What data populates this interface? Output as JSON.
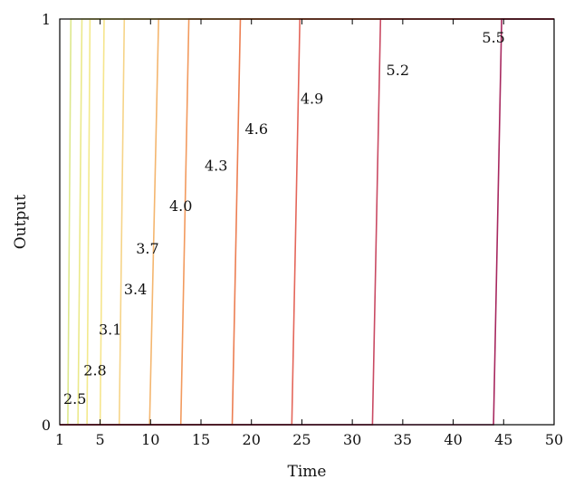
{
  "chart_data": {
    "type": "line",
    "title": "",
    "xlabel": "Time",
    "ylabel": "Output",
    "xlim": [
      1,
      50
    ],
    "ylim": [
      0,
      1
    ],
    "x_ticks": [
      "1",
      "5",
      "10",
      "15",
      "20",
      "25",
      "30",
      "35",
      "40",
      "45",
      "50"
    ],
    "y_ticks": [
      "0",
      "1"
    ],
    "grid": false,
    "series": [
      {
        "name": "2.5",
        "color": "#dde88c",
        "x": [
          1,
          1.8,
          2.1,
          50
        ],
        "y": [
          0,
          0,
          1,
          1
        ]
      },
      {
        "name": "2.8",
        "color": "#ebe98a",
        "x": [
          1,
          2.8,
          3.2,
          50
        ],
        "y": [
          0,
          0,
          1,
          1
        ]
      },
      {
        "name": "3.1",
        "color": "#f3e98c",
        "x": [
          1,
          3.7,
          4.0,
          50
        ],
        "y": [
          0,
          0,
          1,
          1
        ]
      },
      {
        "name": "3.4",
        "color": "#f6e58c",
        "x": [
          1,
          5.0,
          5.4,
          50
        ],
        "y": [
          0,
          0,
          1,
          1
        ]
      },
      {
        "name": "3.7",
        "color": "#f6d488",
        "x": [
          1,
          6.9,
          7.4,
          50
        ],
        "y": [
          0,
          0,
          1,
          1
        ]
      },
      {
        "name": "4.0",
        "color": "#f4b66f",
        "x": [
          1,
          9.9,
          10.8,
          50
        ],
        "y": [
          0,
          0,
          1,
          1
        ]
      },
      {
        "name": "4.3",
        "color": "#f29a5e",
        "x": [
          1,
          13.0,
          13.8,
          50
        ],
        "y": [
          0,
          0,
          1,
          1
        ]
      },
      {
        "name": "4.6",
        "color": "#ec7e52",
        "x": [
          1,
          18.1,
          18.9,
          50
        ],
        "y": [
          0,
          0,
          1,
          1
        ]
      },
      {
        "name": "4.9",
        "color": "#e4665a",
        "x": [
          1,
          24.0,
          24.8,
          50
        ],
        "y": [
          0,
          0,
          1,
          1
        ]
      },
      {
        "name": "5.2",
        "color": "#c94a63",
        "x": [
          1,
          32.0,
          32.8,
          50
        ],
        "y": [
          0,
          0,
          1,
          1
        ]
      },
      {
        "name": "5.5",
        "color": "#a7285f",
        "x": [
          1,
          44.0,
          44.8,
          50
        ],
        "y": [
          0,
          0,
          1,
          1
        ]
      }
    ]
  }
}
